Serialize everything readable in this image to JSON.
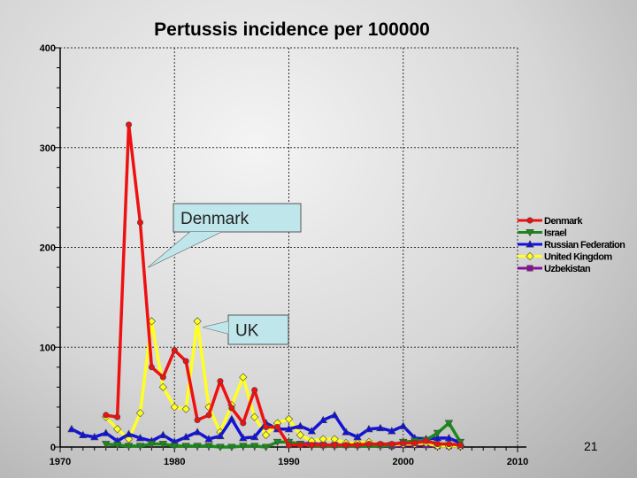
{
  "chart_data": {
    "type": "line",
    "title": "Pertussis incidence per 100000",
    "xlim": [
      1970,
      2010
    ],
    "ylim": [
      0,
      400
    ],
    "xticks": [
      1970,
      1980,
      1990,
      2000,
      2010
    ],
    "yticks": [
      0,
      100,
      200,
      300,
      400
    ],
    "grid": true,
    "legend_placement": "right",
    "series": [
      {
        "name": "Denmark",
        "color": "#ee1111",
        "marker": "circle",
        "x": [
          1974,
          1975,
          1976,
          1977,
          1978,
          1979,
          1980,
          1981,
          1982,
          1983,
          1984,
          1985,
          1986,
          1987,
          1988,
          1989,
          1990,
          1991,
          1992,
          1993,
          1994,
          1995,
          1996,
          1997,
          1998,
          1999,
          2000,
          2001,
          2002,
          2003,
          2004,
          2005
        ],
        "y": [
          32,
          30,
          323,
          225,
          80,
          70,
          97,
          86,
          27,
          32,
          66,
          39,
          24,
          57,
          20,
          20,
          2,
          2,
          2,
          2,
          2,
          2,
          2,
          3,
          3,
          3,
          4,
          4,
          6,
          3,
          3,
          2
        ]
      },
      {
        "name": "Israel",
        "color": "#1a8a1a",
        "marker": "triangle-down",
        "x": [
          1974,
          1975,
          1976,
          1977,
          1978,
          1979,
          1980,
          1981,
          1982,
          1983,
          1984,
          1985,
          1986,
          1987,
          1988,
          1989,
          1990,
          1991,
          1992,
          1993,
          1994,
          1995,
          1996,
          1997,
          1998,
          1999,
          2000,
          2001,
          2002,
          2003,
          2004,
          2005
        ],
        "y": [
          3,
          2,
          1,
          1,
          3,
          3,
          1,
          1,
          1,
          1,
          0,
          0,
          1,
          1,
          0,
          5,
          5,
          3,
          1,
          1,
          1,
          1,
          1,
          1,
          1,
          2,
          5,
          6,
          7,
          14,
          24,
          5
        ]
      },
      {
        "name": "Russian Federation",
        "color": "#1111dd",
        "marker": "triangle-up",
        "x": [
          1971,
          1972,
          1973,
          1974,
          1975,
          1976,
          1977,
          1978,
          1979,
          1980,
          1981,
          1982,
          1983,
          1984,
          1985,
          1986,
          1987,
          1988,
          1989,
          1990,
          1991,
          1992,
          1993,
          1994,
          1995,
          1996,
          1997,
          1998,
          1999,
          2000,
          2001,
          2002,
          2003,
          2004,
          2005
        ],
        "y": [
          18,
          12,
          10,
          14,
          6,
          13,
          9,
          6,
          12,
          5,
          10,
          15,
          8,
          11,
          28,
          9,
          10,
          24,
          18,
          18,
          21,
          16,
          27,
          32,
          15,
          10,
          18,
          19,
          16,
          21,
          9,
          8,
          9,
          9,
          4
        ]
      },
      {
        "name": "United Kingdom",
        "color": "#ffff22",
        "marker": "diamond",
        "x": [
          1974,
          1975,
          1976,
          1977,
          1978,
          1979,
          1980,
          1981,
          1982,
          1983,
          1984,
          1985,
          1986,
          1987,
          1988,
          1989,
          1990,
          1991,
          1992,
          1993,
          1994,
          1995,
          1996,
          1997,
          1998,
          1999,
          2000,
          2001,
          2002,
          2003,
          2004,
          2005
        ],
        "y": [
          30,
          18,
          8,
          34,
          126,
          60,
          40,
          38,
          126,
          40,
          15,
          42,
          70,
          30,
          12,
          24,
          28,
          12,
          6,
          8,
          8,
          4,
          4,
          5,
          2,
          2,
          3,
          3,
          4,
          1,
          1,
          1
        ]
      },
      {
        "name": "Uzbekistan",
        "color": "#881199",
        "marker": "square",
        "x": [
          1990,
          1991,
          1992,
          1993,
          1994,
          1995,
          1996,
          1997,
          1998,
          1999,
          2000,
          2001,
          2002,
          2003,
          2004,
          2005
        ],
        "y": [
          2,
          3,
          4,
          2,
          2,
          2,
          2,
          3,
          2,
          1,
          2,
          2,
          2,
          1,
          1,
          1
        ]
      }
    ],
    "annotations": [
      {
        "text": "Denmark",
        "points_to": [
          1977.7,
          180
        ]
      },
      {
        "text": "UK",
        "points_to": [
          1982.5,
          120
        ]
      }
    ]
  },
  "page_number": "21"
}
